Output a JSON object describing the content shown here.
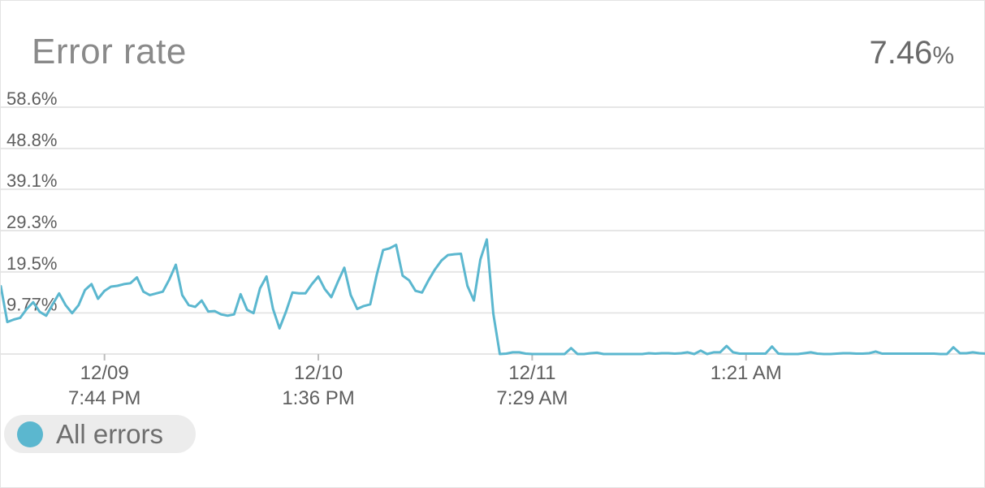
{
  "header": {
    "title": "Error rate",
    "current_value": "7.46",
    "current_unit": "%"
  },
  "colors": {
    "series": "#5bb7cf",
    "grid": "#e6e6e6",
    "axis_text": "#5e5e5e"
  },
  "legend": {
    "label": "All errors",
    "icon": "circle-swatch"
  },
  "chart_data": {
    "type": "line",
    "title": "Error rate",
    "xlabel": "",
    "ylabel": "",
    "ylim": [
      0,
      58.6
    ],
    "y_ticks": [
      "58.6%",
      "48.8%",
      "39.1%",
      "29.3%",
      "19.5%",
      "9.77%"
    ],
    "y_tick_values": [
      58.6,
      48.8,
      39.1,
      29.3,
      19.5,
      9.77
    ],
    "x_ticks": [
      {
        "line1": "12/09",
        "line2": "7:44 PM",
        "index": 16
      },
      {
        "line1": "12/10",
        "line2": "1:36 PM",
        "index": 49
      },
      {
        "line1": "12/11",
        "line2": "7:29 AM",
        "index": 82
      },
      {
        "line1": "",
        "line2": "1:21 AM",
        "index": 115
      }
    ],
    "grid": true,
    "legend_position": "bottom-left",
    "series": [
      {
        "name": "All errors",
        "values": [
          16.1,
          7.6,
          8.2,
          8.6,
          10.7,
          12.3,
          10.0,
          9.1,
          11.8,
          14.4,
          11.6,
          9.7,
          11.6,
          15.2,
          16.6,
          13.1,
          15.0,
          16.0,
          16.2,
          16.6,
          16.8,
          18.2,
          14.8,
          14.0,
          14.4,
          14.8,
          17.7,
          21.2,
          14.0,
          11.6,
          11.2,
          12.7,
          10.1,
          10.2,
          9.4,
          9.1,
          9.4,
          14.2,
          10.5,
          9.7,
          15.6,
          18.4,
          10.7,
          6.1,
          10.0,
          14.6,
          14.4,
          14.4,
          16.6,
          18.4,
          15.4,
          13.5,
          17.1,
          20.5,
          14.0,
          10.7,
          11.4,
          11.8,
          18.8,
          24.7,
          25.1,
          25.9,
          18.6,
          17.5,
          15.0,
          14.6,
          17.5,
          20.1,
          22.2,
          23.5,
          23.7,
          23.8,
          16.2,
          12.7,
          22.4,
          27.2,
          9.6,
          0.0,
          0.1,
          0.4,
          0.4,
          0.1,
          0.0,
          0.0,
          0.0,
          0.0,
          0.0,
          0.0,
          1.4,
          0.0,
          0.0,
          0.2,
          0.3,
          0.0,
          0.0,
          0.0,
          0.0,
          0.0,
          0.0,
          0.0,
          0.2,
          0.1,
          0.2,
          0.2,
          0.1,
          0.2,
          0.4,
          0.0,
          0.8,
          0.0,
          0.4,
          0.4,
          1.9,
          0.4,
          0.1,
          0.1,
          0.1,
          0.1,
          0.1,
          1.8,
          0.1,
          0.0,
          0.0,
          0.0,
          0.2,
          0.4,
          0.1,
          0.0,
          0.0,
          0.1,
          0.2,
          0.2,
          0.1,
          0.1,
          0.2,
          0.6,
          0.1,
          0.1,
          0.1,
          0.1,
          0.1,
          0.1,
          0.1,
          0.1,
          0.1,
          0.0,
          0.0,
          1.6,
          0.2,
          0.2,
          0.4,
          0.2,
          0.1
        ]
      }
    ]
  }
}
